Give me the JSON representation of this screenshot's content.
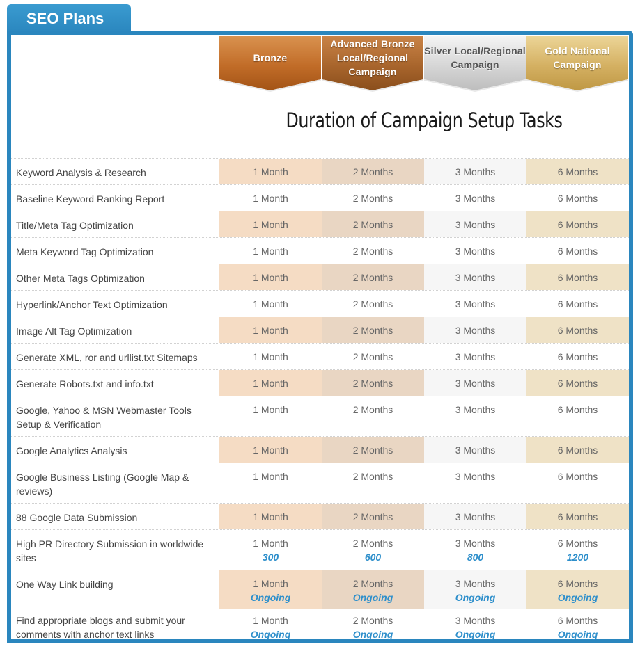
{
  "tab": {
    "title": "SEO Plans"
  },
  "plans": [
    {
      "label": "Bronze"
    },
    {
      "label": "Advanced Bronze Local/Regional Campaign"
    },
    {
      "label": "Silver Local/Regional Campaign"
    },
    {
      "label": "Gold National Campaign"
    }
  ],
  "section_title": "Duration of Campaign Setup Tasks",
  "colors": {
    "brand_blue": "#2a86be",
    "bronze": "#c9773a",
    "advanced_bronze": "#a8652c",
    "silver": "#cfcfcf",
    "gold": "#d9b86a",
    "link_blue": "#2e8fcb"
  },
  "tasks": [
    {
      "name": "Keyword Analysis & Research",
      "values": [
        "1 Month",
        "2 Months",
        "3 Months",
        "6 Months"
      ]
    },
    {
      "name": "Baseline Keyword Ranking Report",
      "values": [
        "1 Month",
        "2 Months",
        "3 Months",
        "6 Months"
      ]
    },
    {
      "name": "Title/Meta Tag Optimization",
      "values": [
        "1 Month",
        "2 Months",
        "3 Months",
        "6 Months"
      ]
    },
    {
      "name": "Meta Keyword Tag Optimization",
      "values": [
        "1 Month",
        "2 Months",
        "3 Months",
        "6 Months"
      ]
    },
    {
      "name": "Other Meta Tags Optimization",
      "values": [
        "1 Month",
        "2 Months",
        "3 Months",
        "6 Months"
      ]
    },
    {
      "name": "Hyperlink/Anchor Text Optimization",
      "values": [
        "1 Month",
        "2 Months",
        "3 Months",
        "6 Months"
      ]
    },
    {
      "name": "Image Alt Tag Optimization",
      "values": [
        "1 Month",
        "2 Months",
        "3 Months",
        "6 Months"
      ]
    },
    {
      "name": "Generate XML, ror and urllist.txt Sitemaps",
      "values": [
        "1 Month",
        "2 Months",
        "3 Months",
        "6 Months"
      ]
    },
    {
      "name": "Generate Robots.txt and info.txt",
      "values": [
        "1 Month",
        "2 Months",
        "3 Months",
        "6 Months"
      ]
    },
    {
      "name": "Google, Yahoo & MSN Webmaster Tools Setup & Verification",
      "values": [
        "1 Month",
        "2 Months",
        "3 Months",
        "6 Months"
      ]
    },
    {
      "name": "Google Analytics Analysis",
      "values": [
        "1 Month",
        "2 Months",
        "3 Months",
        "6 Months"
      ]
    },
    {
      "name": "Google Business Listing (Google Map & reviews)",
      "values": [
        "1 Month",
        "2 Months",
        "3 Months",
        "6 Months"
      ]
    },
    {
      "name": "88 Google Data Submission",
      "values": [
        "1 Month",
        "2 Months",
        "3 Months",
        "6 Months"
      ]
    },
    {
      "name": "High PR Directory Submission in worldwide sites",
      "values": [
        "1 Month",
        "2 Months",
        "3 Months",
        "6 Months"
      ],
      "extras": [
        "300",
        "600",
        "800",
        "1200"
      ]
    },
    {
      "name": "One Way Link building",
      "values": [
        "1 Month",
        "2 Months",
        "3 Months",
        "6 Months"
      ],
      "extras": [
        "Ongoing",
        "Ongoing",
        "Ongoing",
        "Ongoing"
      ]
    },
    {
      "name": "Find appropriate blogs and submit your comments with anchor text links",
      "values": [
        "1 Month",
        "2 Months",
        "3 Months",
        "6 Months"
      ],
      "extras": [
        "Ongoing",
        "Ongoing",
        "Ongoing",
        "Ongoing"
      ]
    }
  ]
}
